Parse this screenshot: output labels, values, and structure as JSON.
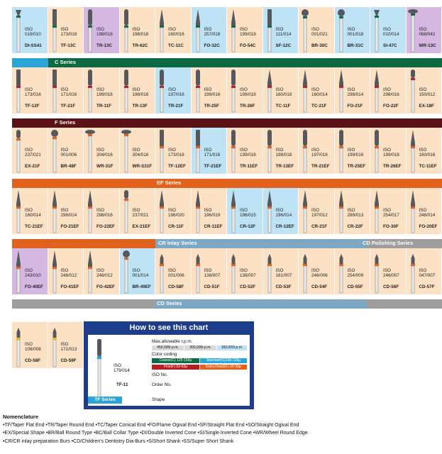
{
  "rows": [
    {
      "band": {
        "labels": [
          "C Series"
        ],
        "color": "#0b6a44",
        "text_color": "#ffffff"
      },
      "cells": [
        {
          "iso": "ISO",
          "code": "019/010",
          "order": "DI-SS41",
          "bg": "#bde3f4",
          "bur": "di"
        },
        {
          "iso": "ISO",
          "code": "173/018",
          "order": "TF-13C",
          "bg": "#fce1c4",
          "bur": "tf"
        },
        {
          "iso": "ISO",
          "code": "198/018",
          "order": "TR-13C",
          "bg": "#d4b8e2",
          "bur": "tr"
        },
        {
          "iso": "ISO",
          "code": "198/018",
          "order": "TR-62C",
          "bg": "#fce1c4",
          "bur": "tr"
        },
        {
          "iso": "ISO",
          "code": "160/016",
          "order": "TC-11C",
          "bg": "#fce1c4",
          "bur": "tc"
        },
        {
          "iso": "ISO",
          "code": "257/018",
          "order": "FO-32C",
          "bg": "#bde3f4",
          "bur": "fo"
        },
        {
          "iso": "ISO",
          "code": "199/018",
          "order": "FO-54C",
          "bg": "#fce1c4",
          "bur": "fo"
        },
        {
          "iso": "ISO",
          "code": "111/014",
          "order": "SF-12C",
          "bg": "#bde3f4",
          "bur": "sf"
        },
        {
          "iso": "ISO",
          "code": "001/021",
          "order": "BR-30C",
          "bg": "#fce1c4",
          "bur": "br"
        },
        {
          "iso": "ISO",
          "code": "001/018",
          "order": "BR-31C",
          "bg": "#bde3f4",
          "bur": "br"
        },
        {
          "iso": "ISO",
          "code": "010/014",
          "order": "SI-47C",
          "bg": "#bde3f4",
          "bur": "si"
        },
        {
          "iso": "ISO",
          "code": "068/042",
          "order": "WR-13C",
          "bg": "#d4b8e2",
          "bur": "wr"
        }
      ]
    },
    {
      "band": {
        "labels": [
          "F Series"
        ],
        "color": "#5a1216",
        "text_color": "#ffffff"
      },
      "cells": [
        {
          "iso": "ISO",
          "code": "173/016",
          "order": "TF-12F",
          "bg": "#fce1c4",
          "bur": "tf"
        },
        {
          "iso": "ISO",
          "code": "171/016",
          "order": "TF-21F",
          "bg": "#fce1c4",
          "bur": "tf"
        },
        {
          "iso": "ISO",
          "code": "199/016",
          "order": "TR-11F",
          "bg": "#fce1c4",
          "bur": "tr"
        },
        {
          "iso": "ISO",
          "code": "198/018",
          "order": "TR-13F",
          "bg": "#fce1c4",
          "bur": "tr"
        },
        {
          "iso": "ISO",
          "code": "197/016",
          "order": "TR-21F",
          "bg": "#bde3f4",
          "bur": "tr"
        },
        {
          "iso": "ISO",
          "code": "199/016",
          "order": "TR-25F",
          "bg": "#fce1c4",
          "bur": "tr"
        },
        {
          "iso": "ISO",
          "code": "199/018",
          "order": "TR-26F",
          "bg": "#fce1c4",
          "bur": "tr"
        },
        {
          "iso": "ISO",
          "code": "160/016",
          "order": "TC-11F",
          "bg": "#fce1c4",
          "bur": "tc"
        },
        {
          "iso": "ISO",
          "code": "160/014",
          "order": "TC-21F",
          "bg": "#fce1c4",
          "bur": "tc"
        },
        {
          "iso": "ISO",
          "code": "298/014",
          "order": "FO-21F",
          "bg": "#fce1c4",
          "bur": "fo"
        },
        {
          "iso": "ISO",
          "code": "298/016",
          "order": "FO-22F",
          "bg": "#fce1c4",
          "bur": "fo"
        },
        {
          "iso": "ISO",
          "code": "150/012",
          "order": "EX-18F",
          "bg": "#fce1c4",
          "bur": "ex"
        }
      ]
    },
    {
      "band": {
        "labels": [
          "EF Series"
        ],
        "color": "#e2611c",
        "text_color": "#ffffff"
      },
      "cells": [
        {
          "iso": "ISO",
          "code": "237/021",
          "order": "EX-21F",
          "bg": "#fce1c4",
          "bur": "ex"
        },
        {
          "iso": "ISO",
          "code": "001/006",
          "order": "BR-48F",
          "bg": "#fce1c4",
          "bur": "br"
        },
        {
          "iso": "ISO",
          "code": "304/016",
          "order": "WR-31F",
          "bg": "#fce1c4",
          "bur": "wr"
        },
        {
          "iso": "ISO",
          "code": "304/016",
          "order": "WR-S31F",
          "bg": "#fce1c4",
          "bur": "wr"
        },
        {
          "iso": "ISO",
          "code": "173/016",
          "order": "TF-12EF",
          "bg": "#fce1c4",
          "bur": "tf"
        },
        {
          "iso": "ISO",
          "code": "171/016",
          "order": "TF-21EF",
          "bg": "#bde3f4",
          "bur": "tf"
        },
        {
          "iso": "ISO",
          "code": "199/016",
          "order": "TR-11EF",
          "bg": "#fce1c4",
          "bur": "tr"
        },
        {
          "iso": "ISO",
          "code": "198/018",
          "order": "TR-13EF",
          "bg": "#fce1c4",
          "bur": "tr"
        },
        {
          "iso": "ISO",
          "code": "197/016",
          "order": "TR-21EF",
          "bg": "#fce1c4",
          "bur": "tr"
        },
        {
          "iso": "ISO",
          "code": "199/016",
          "order": "TR-25EF",
          "bg": "#fce1c4",
          "bur": "tr"
        },
        {
          "iso": "ISO",
          "code": "199/018",
          "order": "TR-26EF",
          "bg": "#fce1c4",
          "bur": "tr"
        },
        {
          "iso": "ISO",
          "code": "160/016",
          "order": "TC-11EF",
          "bg": "#fce1c4",
          "bur": "tc"
        }
      ]
    },
    {
      "band": {
        "labels": [
          "CR Inlay Series",
          "CD Polishing Series"
        ],
        "color": "#9e9e9e",
        "text_color": "#ffffff",
        "left_color": "#e2611c",
        "mid_color": "#7ea7c4"
      },
      "cells": [
        {
          "iso": "ISO",
          "code": "160/014",
          "order": "TC-21EF",
          "bg": "#fce1c4",
          "bur": "tc"
        },
        {
          "iso": "ISO",
          "code": "298/014",
          "order": "FO-21EF",
          "bg": "#fce1c4",
          "bur": "fo"
        },
        {
          "iso": "ISO",
          "code": "298/016",
          "order": "FO-22EF",
          "bg": "#fce1c4",
          "bur": "fo"
        },
        {
          "iso": "ISO",
          "code": "237/021",
          "order": "EX-21EF",
          "bg": "#fce1c4",
          "bur": "ex"
        },
        {
          "iso": "ISO",
          "code": "196/020",
          "order": "CR-11F",
          "bg": "#fce1c4",
          "bur": "cr"
        },
        {
          "iso": "ISO",
          "code": "196/019",
          "order": "CR-11EF",
          "bg": "#fce1c4",
          "bur": "cr"
        },
        {
          "iso": "ISO",
          "code": "196/015",
          "order": "CR-12F",
          "bg": "#bde3f4",
          "bur": "cr"
        },
        {
          "iso": "ISO",
          "code": "196/014",
          "order": "CR-12EF",
          "bg": "#bde3f4",
          "bur": "cr"
        },
        {
          "iso": "ISO",
          "code": "197/012",
          "order": "CR-21F",
          "bg": "#fce1c4",
          "bur": "cr"
        },
        {
          "iso": "ISO",
          "code": "289/013",
          "order": "CR-22F",
          "bg": "#fce1c4",
          "bur": "cr"
        },
        {
          "iso": "ISO",
          "code": "254/017",
          "order": "FO-30F",
          "bg": "#fce1c4",
          "bur": "fo"
        },
        {
          "iso": "ISO",
          "code": "248/014",
          "order": "FO-20EF",
          "bg": "#fce1c4",
          "bur": "fo"
        }
      ]
    },
    {
      "band": {
        "labels": [
          "CD Series"
        ],
        "color": "#9e9e9e",
        "text_color": "#ffffff",
        "mid_color": "#7ea7c4"
      },
      "cells": [
        {
          "iso": "ISO",
          "code": "243/010",
          "order": "FO-40EF",
          "bg": "#d4b8e2",
          "bur": "fo"
        },
        {
          "iso": "ISO",
          "code": "248/012",
          "order": "FO-41EF",
          "bg": "#fce1c4",
          "bur": "fo"
        },
        {
          "iso": "ISO",
          "code": "248/012",
          "order": "FO-42EF",
          "bg": "#fce1c4",
          "bur": "fo"
        },
        {
          "iso": "ISO",
          "code": "001/014",
          "order": "BR-49EF",
          "bg": "#bde3f4",
          "bur": "br"
        },
        {
          "iso": "ISO",
          "code": "001/006",
          "order": "CD-58F",
          "bg": "#fce1c4",
          "bur": "cd"
        },
        {
          "iso": "ISO",
          "code": "138/007",
          "order": "CD-51F",
          "bg": "#fce1c4",
          "bur": "cd"
        },
        {
          "iso": "ISO",
          "code": "138/007",
          "order": "CD-52F",
          "bg": "#fce1c4",
          "bur": "cd"
        },
        {
          "iso": "ISO",
          "code": "161/007",
          "order": "CD-53F",
          "bg": "#fce1c4",
          "bur": "cd"
        },
        {
          "iso": "ISO",
          "code": "246/006",
          "order": "CD-54F",
          "bg": "#fce1c4",
          "bur": "cd"
        },
        {
          "iso": "ISO",
          "code": "254/009",
          "order": "CD-55F",
          "bg": "#fce1c4",
          "bur": "cd"
        },
        {
          "iso": "ISO",
          "code": "246/007",
          "order": "CD-56F",
          "bg": "#fce1c4",
          "bur": "cd"
        },
        {
          "iso": "ISO",
          "code": "047/007",
          "order": "CD-57F",
          "bg": "#fce1c4",
          "bur": "cd"
        }
      ]
    },
    {
      "band": null,
      "cells": [
        {
          "iso": "ISO",
          "code": "108/008",
          "order": "CD-58F",
          "bg": "#fce1c4",
          "bur": "cd"
        },
        {
          "iso": "ISO",
          "code": "171/013",
          "order": "CD-59F",
          "bg": "#fce1c4",
          "bur": "cd"
        }
      ]
    }
  ],
  "how_to": {
    "title": "How to see this chart",
    "max_rpm_label": "Max.allowable r.p.m.",
    "rpm_values": [
      "450,000r.p.m.",
      "300,000r.p.m.",
      "160,000r.p.m."
    ],
    "color_coding_label": "Color coding",
    "grit_chips": [
      {
        "text": "Coarse(C) 125-150μ",
        "bg": "#0b6a44",
        "fg": "#ffffff"
      },
      {
        "text": "Standard(S)106-125μ",
        "bg": "#2aa6d6",
        "fg": "#ffffff"
      },
      {
        "text": "Fine(F) 53-63μ",
        "bg": "#b81d22",
        "fg": "#ffffff"
      },
      {
        "text": "Extra Fine(EF) 20-30μ",
        "bg": "#e2611c",
        "fg": "#ffffff"
      }
    ],
    "sample_iso": "ISO",
    "sample_code": "179/014",
    "iso_no_label": "ISO No.",
    "sample_order": "TF-11",
    "order_no_label": "Order No.",
    "sample_series": "TF Series",
    "shape_label": "Shape"
  },
  "nomenclature": {
    "title": "Nomenclature",
    "lines": [
      "•TF/Taper Flat End  •TR/Taper Round End  •TC/Taper Conical End  •FO/Flame Ogival End  •SF/Straight Flat End  •SO/Straight Ogival End",
      "•EX/Special Shape  •BR/Ball Round Type  •BC/Ball Collar Type  •DI/Double Inverted Cone  •SI/Single Inverted Cone  •WR/Wheel Round Edge",
      "•CR/CR inlay preparation Burs   •CD/Children's Dentistry Dia-Burs  •S/Short Shank  •SS/Super Short Shank"
    ]
  },
  "colors": {
    "shank": "#e9e9e9",
    "shank_edge": "#8c8c8c",
    "diamond": "#55595e",
    "c_top_band": "#2aa6d6",
    "neck_green": "#0b6a44",
    "neck_red": "#b81d22",
    "neck_orange": "#e2611c",
    "neck_blue": "#2aa6d6",
    "neck_yellow": "#e8c21b"
  }
}
